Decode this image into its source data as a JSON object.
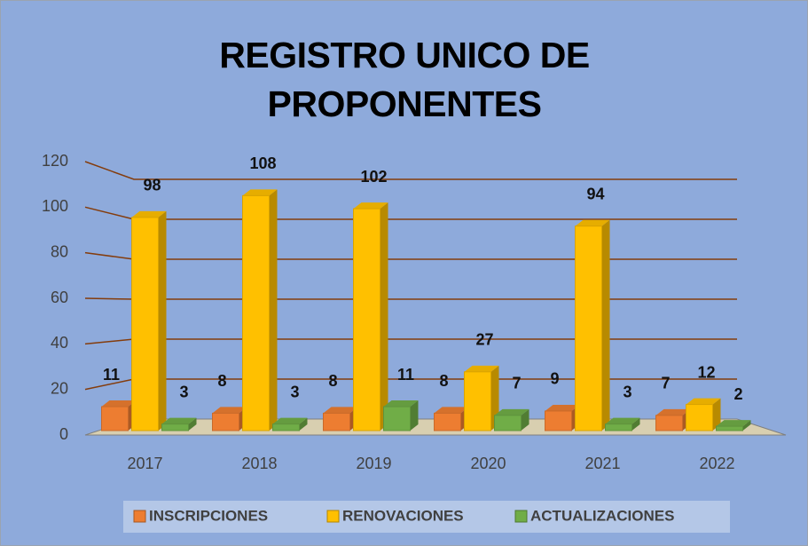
{
  "chart_data": {
    "type": "bar3d",
    "title": "REGISTRO UNICO DE PROPONENTES",
    "categories": [
      "2017",
      "2018",
      "2019",
      "2020",
      "2021",
      "2022"
    ],
    "series": [
      {
        "name": "INSCRIPCIONES",
        "color": "#ed7d31",
        "values": [
          11,
          8,
          8,
          8,
          9,
          7
        ]
      },
      {
        "name": "RENOVACIONES",
        "color": "#ffc000",
        "values": [
          98,
          108,
          102,
          27,
          94,
          12
        ]
      },
      {
        "name": "ACTUALIZACIONES",
        "color": "#70ad47",
        "values": [
          3,
          3,
          11,
          7,
          3,
          2
        ]
      }
    ],
    "ylim": [
      0,
      120
    ],
    "yticks": [
      0,
      20,
      40,
      60,
      80,
      100,
      120
    ],
    "grid": true,
    "legend": "bottom"
  }
}
